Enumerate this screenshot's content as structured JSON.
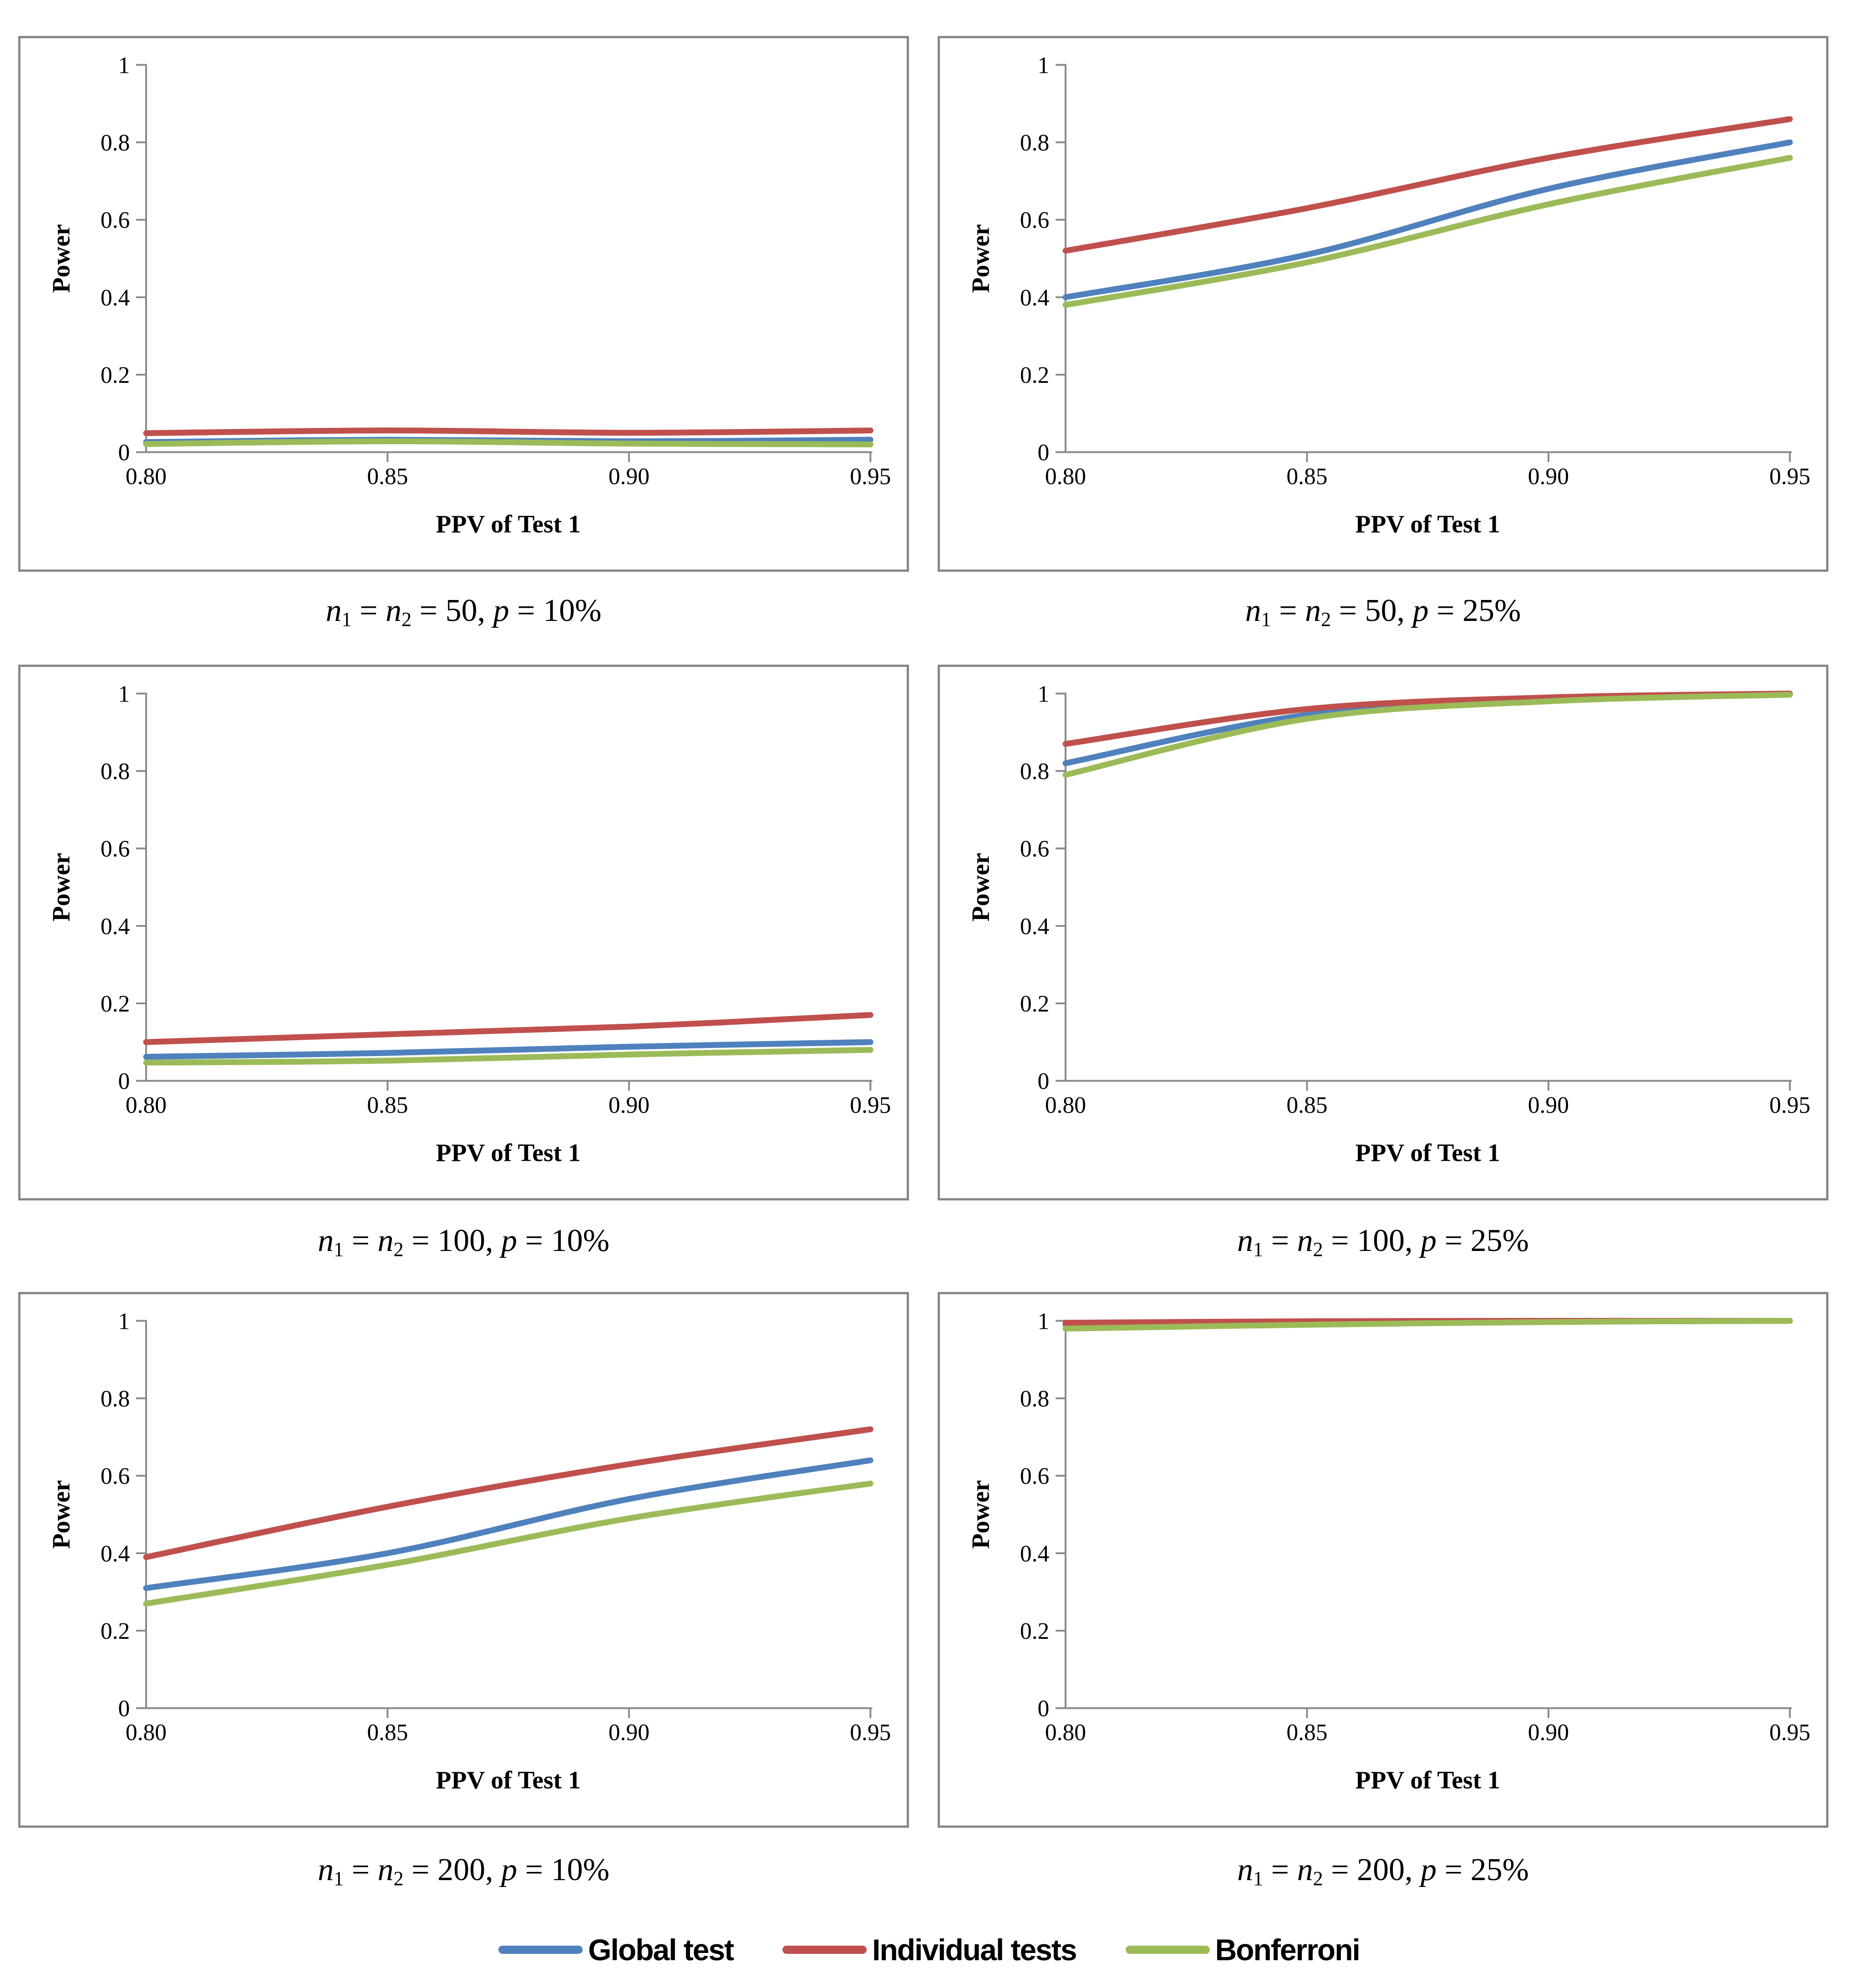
{
  "axes": {
    "x_label": "PPV of Test 1",
    "y_label": "Power",
    "x_tick_labels": [
      "0.80",
      "0.85",
      "0.90",
      "0.95"
    ],
    "y_tick_labels": [
      "0",
      "0.2",
      "0.4",
      "0.6",
      "0.8",
      "1"
    ],
    "x_range": [
      0.8,
      0.95
    ],
    "y_range": [
      0,
      1
    ],
    "axis_color": "#898989",
    "text_color": "#000000",
    "grid": "off"
  },
  "legend": {
    "position": "bottom-center",
    "items": [
      {
        "label": "Global test",
        "color": "#4F81BD"
      },
      {
        "label": "Individual tests",
        "color": "#C0504D"
      },
      {
        "label": "Bonferroni",
        "color": "#9BBB59"
      }
    ]
  },
  "chart_data": [
    {
      "type": "line",
      "title": "n1 = n2 = 50, p = 10%",
      "caption": {
        "var1": "n",
        "sub1": "1",
        "eq1": " = ",
        "var2": "n",
        "sub2": "2",
        "eq2": " = ",
        "nval": "50, ",
        "var3": "p",
        "eq3": " = ",
        "pval": "10%"
      },
      "x": [
        0.8,
        0.85,
        0.9,
        0.95
      ],
      "xlabel": "PPV of Test 1",
      "ylabel": "Power",
      "ylim": [
        0,
        1
      ],
      "series": [
        {
          "name": "Global test",
          "values": [
            0.026,
            0.032,
            0.028,
            0.032
          ]
        },
        {
          "name": "Individual tests",
          "values": [
            0.049,
            0.056,
            0.05,
            0.056
          ]
        },
        {
          "name": "Bonferroni",
          "values": [
            0.021,
            0.028,
            0.022,
            0.02
          ]
        }
      ]
    },
    {
      "type": "line",
      "title": "n1 = n2 = 50, p = 25%",
      "caption": {
        "var1": "n",
        "sub1": "1",
        "eq1": " = ",
        "var2": "n",
        "sub2": "2",
        "eq2": " = ",
        "nval": "50, ",
        "var3": "p",
        "eq3": " = ",
        "pval": "25%"
      },
      "x": [
        0.8,
        0.85,
        0.9,
        0.95
      ],
      "xlabel": "PPV of Test 1",
      "ylabel": "Power",
      "ylim": [
        0,
        1
      ],
      "series": [
        {
          "name": "Global test",
          "values": [
            0.4,
            0.51,
            0.68,
            0.8
          ]
        },
        {
          "name": "Individual tests",
          "values": [
            0.52,
            0.63,
            0.76,
            0.86
          ]
        },
        {
          "name": "Bonferroni",
          "values": [
            0.38,
            0.49,
            0.64,
            0.76
          ]
        }
      ]
    },
    {
      "type": "line",
      "title": "n1 = n2 = 100, p = 10%",
      "caption": {
        "var1": "n",
        "sub1": "1",
        "eq1": " = ",
        "var2": "n",
        "sub2": "2",
        "eq2": " = ",
        "nval": "100, ",
        "var3": "p",
        "eq3": " = ",
        "pval": "10%"
      },
      "x": [
        0.8,
        0.85,
        0.9,
        0.95
      ],
      "xlabel": "PPV of Test 1",
      "ylabel": "Power",
      "ylim": [
        0,
        1
      ],
      "series": [
        {
          "name": "Global test",
          "values": [
            0.062,
            0.072,
            0.088,
            0.1
          ]
        },
        {
          "name": "Individual tests",
          "values": [
            0.1,
            0.12,
            0.14,
            0.17
          ]
        },
        {
          "name": "Bonferroni",
          "values": [
            0.047,
            0.052,
            0.068,
            0.08
          ]
        }
      ]
    },
    {
      "type": "line",
      "title": "n1 = n2 = 100, p = 25%",
      "caption": {
        "var1": "n",
        "sub1": "1",
        "eq1": " = ",
        "var2": "n",
        "sub2": "2",
        "eq2": " = ",
        "nval": "100, ",
        "var3": "p",
        "eq3": " = ",
        "pval": "25%"
      },
      "x": [
        0.8,
        0.85,
        0.9,
        0.95
      ],
      "xlabel": "PPV of Test 1",
      "ylabel": "Power",
      "ylim": [
        0,
        1
      ],
      "series": [
        {
          "name": "Global test",
          "values": [
            0.82,
            0.945,
            0.985,
            0.998
          ]
        },
        {
          "name": "Individual tests",
          "values": [
            0.87,
            0.96,
            0.99,
            1.0
          ]
        },
        {
          "name": "Bonferroni",
          "values": [
            0.79,
            0.935,
            0.98,
            0.997
          ]
        }
      ]
    },
    {
      "type": "line",
      "title": "n1 = n2 = 200, p = 10%",
      "caption": {
        "var1": "n",
        "sub1": "1",
        "eq1": " = ",
        "var2": "n",
        "sub2": "2",
        "eq2": " = ",
        "nval": "200, ",
        "var3": "p",
        "eq3": " = ",
        "pval": "10%"
      },
      "x": [
        0.8,
        0.85,
        0.9,
        0.95
      ],
      "xlabel": "PPV of Test 1",
      "ylabel": "Power",
      "ylim": [
        0,
        1
      ],
      "series": [
        {
          "name": "Global test",
          "values": [
            0.31,
            0.4,
            0.54,
            0.64
          ]
        },
        {
          "name": "Individual tests",
          "values": [
            0.39,
            0.52,
            0.63,
            0.72
          ]
        },
        {
          "name": "Bonferroni",
          "values": [
            0.27,
            0.37,
            0.49,
            0.58
          ]
        }
      ]
    },
    {
      "type": "line",
      "title": "n1 = n2 = 200, p = 25%",
      "caption": {
        "var1": "n",
        "sub1": "1",
        "eq1": " = ",
        "var2": "n",
        "sub2": "2",
        "eq2": " = ",
        "nval": "200, ",
        "var3": "p",
        "eq3": " = ",
        "pval": "25%"
      },
      "x": [
        0.8,
        0.85,
        0.9,
        0.95
      ],
      "xlabel": "PPV of Test 1",
      "ylabel": "Power",
      "ylim": [
        0,
        1
      ],
      "series": [
        {
          "name": "Global test",
          "values": [
            0.99,
            0.996,
            0.999,
            1.0
          ]
        },
        {
          "name": "Individual tests",
          "values": [
            0.995,
            0.999,
            1.0,
            1.0
          ]
        },
        {
          "name": "Bonferroni",
          "values": [
            0.98,
            0.99,
            0.997,
            1.0
          ]
        }
      ]
    }
  ]
}
